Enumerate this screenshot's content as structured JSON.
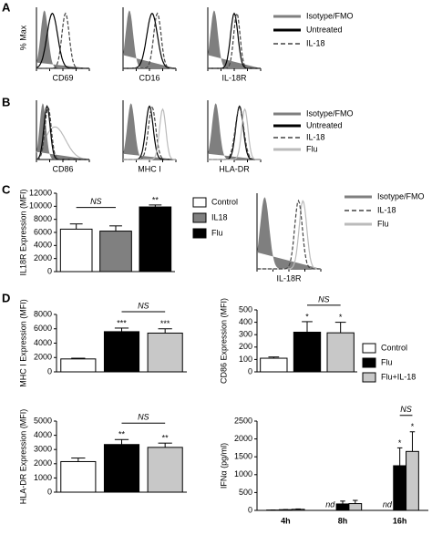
{
  "panel_labels": [
    "A",
    "B",
    "C",
    "D"
  ],
  "chart_data": [
    {
      "type": "flow",
      "ylabel": "% Max",
      "xlabels": [
        "CD69",
        "CD16",
        "IL-18R"
      ],
      "series": [
        {
          "name": "Isotype/FMO",
          "color": "#7f7f7f",
          "fill": true
        },
        {
          "name": "Untreated",
          "color": "#000000"
        },
        {
          "name": "IL-18",
          "color": "#444444",
          "dash": true
        }
      ]
    },
    {
      "type": "flow",
      "xlabels": [
        "CD86",
        "MHC I",
        "HLA-DR"
      ],
      "series": [
        {
          "name": "Isotype/FMO",
          "color": "#7f7f7f",
          "fill": true
        },
        {
          "name": "Untreated",
          "color": "#000000"
        },
        {
          "name": "IL-18",
          "color": "#444444",
          "dash": true
        },
        {
          "name": "Flu",
          "color": "#bbbbbb"
        }
      ]
    },
    {
      "type": "bar",
      "ylabel": "IL18R Expression (MFI)",
      "ylim": [
        0,
        12000
      ],
      "yticks": [
        0,
        2000,
        4000,
        6000,
        8000,
        10000,
        12000
      ],
      "values": [
        6500,
        6200,
        9900
      ],
      "errors": [
        800,
        800,
        300
      ],
      "colors": [
        "#ffffff",
        "#808080",
        "#000000"
      ],
      "legend": [
        "Control",
        "IL18",
        "Flu"
      ],
      "stars": [
        null,
        null,
        "**"
      ],
      "bracket": {
        "label": "NS",
        "bars": [
          0,
          1
        ]
      }
    },
    {
      "type": "flow",
      "xlabels": [
        "IL-18R"
      ],
      "series": [
        {
          "name": "Isotype/FMO",
          "color": "#7f7f7f",
          "fill": true
        },
        {
          "name": "IL-18",
          "color": "#444444",
          "dash": true
        },
        {
          "name": "Flu",
          "color": "#bbbbbb"
        }
      ]
    },
    {
      "type": "bar",
      "ylabel": "MHC I Expression (MFI)",
      "ylim": [
        0,
        8000
      ],
      "yticks": [
        0,
        2000,
        4000,
        6000,
        8000
      ],
      "values": [
        1800,
        5600,
        5400
      ],
      "errors": [
        100,
        500,
        600
      ],
      "colors": [
        "#ffffff",
        "#000000",
        "#c8c8c8"
      ],
      "stars": [
        null,
        "***",
        "***"
      ],
      "bracket": {
        "label": "NS",
        "bars": [
          1,
          2
        ]
      }
    },
    {
      "type": "bar",
      "ylabel": "CD86 Expression (MFI)",
      "ylim": [
        0,
        500
      ],
      "yticks": [
        0,
        100,
        200,
        300,
        400,
        500
      ],
      "values": [
        110,
        320,
        315
      ],
      "errors": [
        10,
        85,
        85
      ],
      "colors": [
        "#ffffff",
        "#000000",
        "#c8c8c8"
      ],
      "legend": [
        "Control",
        "Flu",
        "Flu+IL-18"
      ],
      "stars": [
        null,
        "*",
        "*"
      ],
      "bracket": {
        "label": "NS",
        "bars": [
          1,
          2
        ]
      }
    },
    {
      "type": "bar",
      "ylabel": "HLA-DR Expression (MFI)",
      "ylim": [
        0,
        5000
      ],
      "yticks": [
        0,
        1000,
        2000,
        3000,
        4000,
        5000
      ],
      "values": [
        2150,
        3350,
        3150
      ],
      "errors": [
        250,
        350,
        300
      ],
      "colors": [
        "#ffffff",
        "#000000",
        "#c8c8c8"
      ],
      "stars": [
        null,
        "**",
        "**"
      ],
      "bracket": {
        "label": "NS",
        "bars": [
          1,
          2
        ]
      }
    },
    {
      "type": "grouped-bar",
      "ylabel": "IFNα (pg/ml)",
      "ylim": [
        0,
        2500
      ],
      "yticks": [
        0,
        500,
        1000,
        1500,
        2000,
        2500
      ],
      "categories": [
        "4h",
        "8h",
        "16h"
      ],
      "nd_labels": [
        null,
        "nd",
        "nd"
      ],
      "series": [
        {
          "color": "#ffffff",
          "values": [
            10,
            null,
            null
          ],
          "errors": [
            3,
            null,
            null
          ]
        },
        {
          "color": "#000000",
          "values": [
            20,
            180,
            1250
          ],
          "errors": [
            5,
            80,
            500
          ],
          "stars": [
            null,
            null,
            "*"
          ]
        },
        {
          "color": "#c8c8c8",
          "values": [
            30,
            190,
            1650
          ],
          "errors": [
            10,
            90,
            550
          ],
          "stars": [
            null,
            null,
            "*"
          ]
        }
      ],
      "bracket": {
        "label": "NS",
        "category": 2,
        "series": [
          1,
          2
        ]
      }
    }
  ]
}
